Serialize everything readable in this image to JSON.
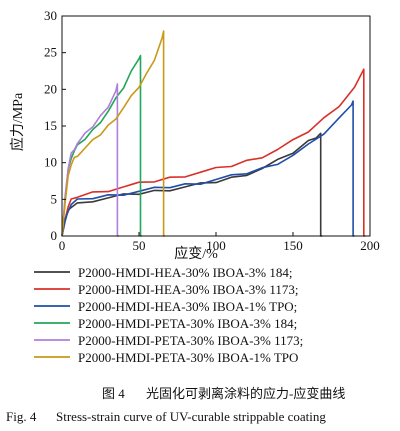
{
  "chart_data": {
    "type": "line",
    "xlabel": "应变/%",
    "ylabel": "应力/MPa",
    "xlim": [
      0,
      200
    ],
    "ylim": [
      0,
      30
    ],
    "xticks": [
      0,
      50,
      100,
      150,
      200
    ],
    "yticks": [
      0,
      5,
      10,
      15,
      20,
      25,
      30
    ],
    "grid": false,
    "legend_position": "below",
    "series": [
      {
        "name": "P2000-HMDI-HEA-30% IBOA-3% 184;",
        "color": "#3a3a3a",
        "x": [
          0,
          2,
          4,
          6,
          10,
          20,
          30,
          40,
          50,
          60,
          70,
          80,
          90,
          100,
          110,
          120,
          130,
          140,
          150,
          160,
          165,
          168,
          168,
          169
        ],
        "y": [
          0,
          2.0,
          3.3,
          4.0,
          4.4,
          4.9,
          5.2,
          5.5,
          5.8,
          6.1,
          6.4,
          6.7,
          7.0,
          7.4,
          7.9,
          8.5,
          9.2,
          10.2,
          11.4,
          12.9,
          13.6,
          14.0,
          0,
          0
        ]
      },
      {
        "name": "P2000-HMDI-HEA-30% IBOA-3% 1173;",
        "color": "#d9302a",
        "x": [
          0,
          2,
          4,
          6,
          10,
          20,
          30,
          40,
          50,
          60,
          70,
          80,
          90,
          100,
          110,
          120,
          130,
          140,
          150,
          160,
          170,
          180,
          190,
          196,
          196,
          197
        ],
        "y": [
          0,
          2.5,
          4.0,
          4.8,
          5.4,
          5.9,
          6.3,
          6.7,
          7.1,
          7.5,
          7.9,
          8.3,
          8.7,
          9.1,
          9.6,
          10.2,
          10.9,
          11.8,
          12.9,
          14.3,
          16.0,
          17.9,
          20.3,
          22.5,
          0,
          0
        ]
      },
      {
        "name": "P2000-HMDI-HEA-30% IBOA-1% TPO;",
        "color": "#1f4fa8",
        "x": [
          0,
          2,
          4,
          6,
          10,
          20,
          30,
          40,
          50,
          60,
          70,
          80,
          90,
          100,
          110,
          120,
          130,
          140,
          150,
          160,
          170,
          180,
          188,
          189,
          189,
          190
        ],
        "y": [
          0,
          2.2,
          3.6,
          4.3,
          4.8,
          5.2,
          5.5,
          5.8,
          6.1,
          6.4,
          6.7,
          7.0,
          7.3,
          7.7,
          8.1,
          8.6,
          9.2,
          10.0,
          11.0,
          12.3,
          14.0,
          16.0,
          18.1,
          18.4,
          0,
          0
        ]
      },
      {
        "name": "P2000-HMDI-PETA-30% IBOA-3% 184;",
        "color": "#22a65a",
        "x": [
          0,
          2,
          4,
          6,
          8,
          10,
          15,
          20,
          25,
          30,
          35,
          40,
          45,
          50,
          51,
          51,
          52
        ],
        "y": [
          0,
          5.0,
          9.0,
          10.8,
          11.6,
          12.2,
          13.3,
          14.4,
          15.7,
          17.0,
          18.6,
          20.3,
          22.4,
          24.4,
          24.6,
          0,
          0
        ]
      },
      {
        "name": "P2000-HMDI-PETA-30% IBOA-3% 1173;",
        "color": "#b07fd8",
        "x": [
          0,
          2,
          4,
          6,
          8,
          10,
          15,
          20,
          25,
          30,
          35,
          36,
          36,
          37
        ],
        "y": [
          0,
          5.2,
          9.3,
          11.2,
          12.0,
          12.6,
          13.8,
          15.0,
          16.3,
          17.8,
          19.8,
          20.5,
          0,
          0
        ]
      },
      {
        "name": "P2000-HMDI-PETA-30% IBOA-1% TPO",
        "color": "#c89a1a",
        "x": [
          0,
          2,
          4,
          6,
          8,
          10,
          15,
          20,
          25,
          30,
          35,
          40,
          45,
          50,
          55,
          60,
          65,
          66,
          66,
          67
        ],
        "y": [
          0,
          4.5,
          8.0,
          9.8,
          10.6,
          11.1,
          12.0,
          12.9,
          13.9,
          15.0,
          16.2,
          17.5,
          18.9,
          20.4,
          22.1,
          24.2,
          27.0,
          27.7,
          0,
          0
        ]
      }
    ]
  },
  "caption": {
    "cn_label": "图 4",
    "cn_text": "光固化可剥离涂料的应力-应变曲线",
    "en_label": "Fig. 4",
    "en_text": "Stress-strain curve of UV-curable strippable coating"
  }
}
